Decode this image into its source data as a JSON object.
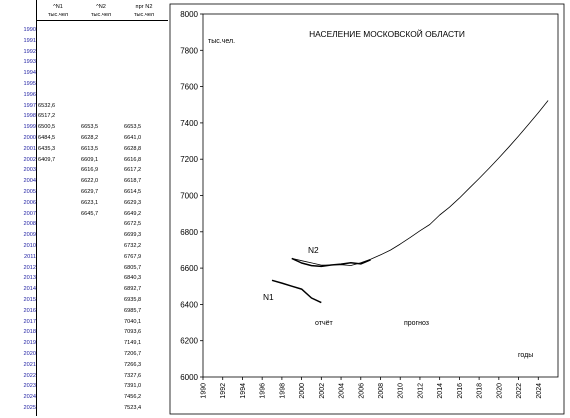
{
  "table": {
    "headers": [
      {
        "top": "^N1",
        "sub": "тыс.чел"
      },
      {
        "top": "^N2",
        "sub": "тыс.чел"
      },
      {
        "top": "прг N2",
        "sub": "тыс.чел"
      }
    ],
    "years": [
      "1990",
      "1991",
      "1992",
      "1993",
      "1994",
      "1995",
      "1996",
      "1997",
      "1998",
      "1999",
      "2000",
      "2001",
      "2002",
      "2003",
      "2004",
      "2005",
      "2006",
      "2007",
      "2008",
      "2009",
      "2010",
      "2011",
      "2012",
      "2013",
      "2014",
      "2015",
      "2016",
      "2017",
      "2018",
      "2019",
      "2020",
      "2021",
      "2022",
      "2023",
      "2024",
      "2025"
    ],
    "col1": [
      "",
      "",
      "",
      "",
      "",
      "",
      "",
      "6532,6",
      "6517,2",
      "6500,5",
      "6484,5",
      "6435,3",
      "6409,7",
      "",
      "",
      "",
      "",
      "",
      "",
      "",
      "",
      "",
      "",
      "",
      "",
      "",
      "",
      "",
      "",
      "",
      "",
      "",
      "",
      "",
      "",
      ""
    ],
    "col2": [
      "",
      "",
      "",
      "",
      "",
      "",
      "",
      "",
      "",
      "6653,5",
      "6628,2",
      "6613,5",
      "6609,1",
      "6616,9",
      "6622,0",
      "6629,7",
      "6623,1",
      "6645,7",
      "",
      "",
      "",
      "",
      "",
      "",
      "",
      "",
      "",
      "",
      "",
      "",
      "",
      "",
      "",
      "",
      "",
      ""
    ],
    "col3": [
      "",
      "",
      "",
      "",
      "",
      "",
      "",
      "",
      "",
      "6653,5",
      "6641,0",
      "6628,8",
      "6616,8",
      "6617,2",
      "6618,7",
      "6614,5",
      "6629,3",
      "6649,2",
      "6672,5",
      "6699,3",
      "6732,2",
      "6767,9",
      "6805,7",
      "6840,3",
      "6892,7",
      "6935,8",
      "6985,7",
      "7040,1",
      "7093,6",
      "7149,1",
      "7206,7",
      "7266,3",
      "7327,6",
      "7391,0",
      "7456,2",
      "7523,4"
    ]
  },
  "chart_data": {
    "type": "line",
    "title": "НАСЕЛЕНИЕ МОСКОВСКОЙ ОБЛАСТИ",
    "ylabel": "тыс.чел.",
    "xlabel": "годы",
    "ylim": [
      6000,
      8000
    ],
    "yticks": [
      6000,
      6200,
      6400,
      6600,
      6800,
      7000,
      7200,
      7400,
      7600,
      7800,
      8000
    ],
    "xlim": [
      1990,
      2026
    ],
    "xticks": [
      "1990",
      "1992",
      "1994",
      "1996",
      "1998",
      "2000",
      "2002",
      "2004",
      "2006",
      "2008",
      "2010",
      "2012",
      "2014",
      "2016",
      "2018",
      "2020",
      "2022",
      "2024"
    ],
    "annotations": [
      "отчёт",
      "прогноз"
    ],
    "grid": false,
    "series": [
      {
        "name": "N1",
        "x": [
          1997,
          1998,
          1999,
          2000,
          2001,
          2002
        ],
        "y": [
          6532.6,
          6517.2,
          6500.5,
          6484.5,
          6435.3,
          6409.7
        ]
      },
      {
        "name": "N2",
        "x": [
          1999,
          2000,
          2001,
          2002,
          2003,
          2004,
          2005,
          2006,
          2007
        ],
        "y": [
          6653.5,
          6628.2,
          6613.5,
          6609.1,
          6616.9,
          6622.0,
          6629.7,
          6623.1,
          6645.7
        ]
      },
      {
        "name": "",
        "x": [
          1999,
          2000,
          2001,
          2002,
          2003,
          2004,
          2005,
          2006,
          2007,
          2008,
          2009,
          2010,
          2011,
          2012,
          2013,
          2014,
          2015,
          2016,
          2017,
          2018,
          2019,
          2020,
          2021,
          2022,
          2023,
          2024,
          2025
        ],
        "y": [
          6653.5,
          6641.0,
          6628.8,
          6616.8,
          6617.2,
          6618.7,
          6614.5,
          6629.3,
          6649.2,
          6672.5,
          6699.3,
          6732.2,
          6767.9,
          6805.7,
          6840.3,
          6892.7,
          6935.8,
          6985.7,
          7040.1,
          7093.6,
          7149.1,
          7206.7,
          7266.3,
          7327.6,
          7391.0,
          7456.2,
          7523.4
        ]
      }
    ]
  }
}
